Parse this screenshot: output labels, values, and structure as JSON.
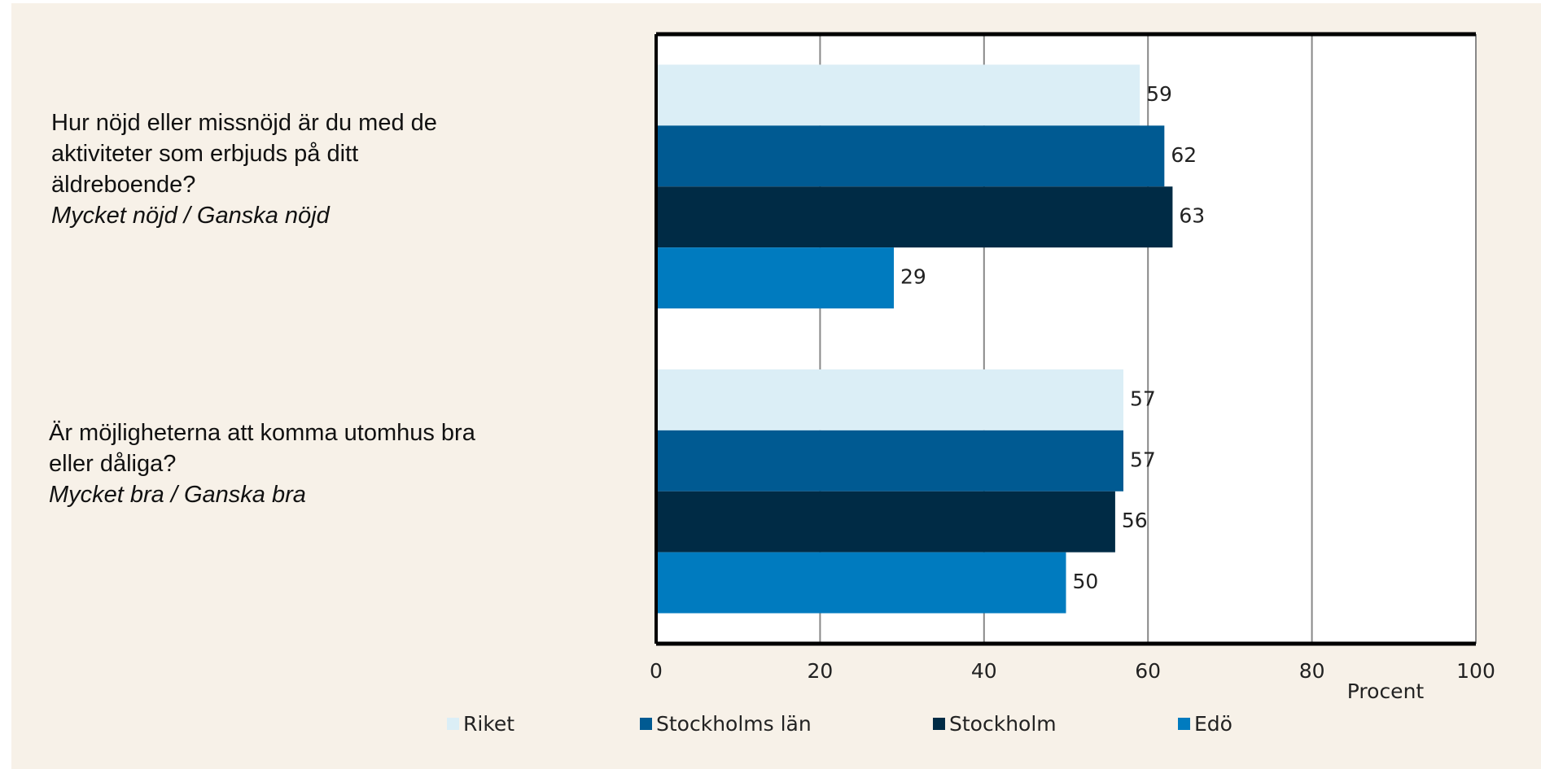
{
  "chart_data": {
    "type": "barh",
    "categories": [
      "Hur nöjd eller missnöjd är du med de aktiviteter som erbjuds på ditt äldreboende?",
      "Är möjligheterna att komma utomhus bra eller dåliga?"
    ],
    "category_notes": [
      "Mycket nöjd / Ganska nöjd",
      "Mycket bra / Ganska bra"
    ],
    "series": [
      {
        "name": "Riket",
        "color": "#dbeef6",
        "values": [
          59,
          57
        ]
      },
      {
        "name": "Stockholms län",
        "color": "#005a92",
        "values": [
          62,
          57
        ]
      },
      {
        "name": "Stockholm",
        "color": "#002b45",
        "values": [
          63,
          56
        ]
      },
      {
        "name": "Edö",
        "color": "#007bbf",
        "values": [
          29,
          50
        ]
      }
    ],
    "xlabel": "Procent",
    "xlim": [
      0,
      100
    ],
    "xticks": [
      0,
      20,
      40,
      60,
      80,
      100
    ],
    "grid": true
  }
}
